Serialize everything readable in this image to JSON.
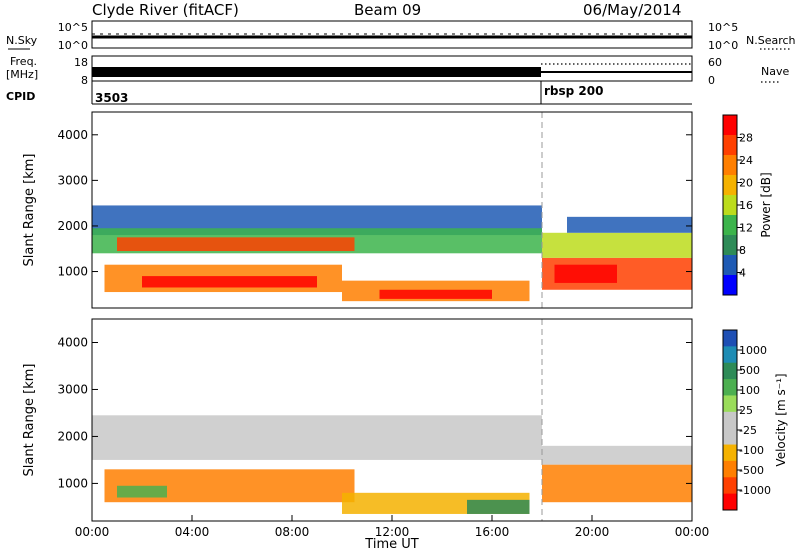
{
  "header": {
    "title": "Clyde River (fitACF)",
    "beam": "Beam 09",
    "date": "06/May/2014"
  },
  "strip_panels": {
    "nsky": {
      "label": "N.Sky",
      "left_ticks": [
        "10^5",
        "10^0"
      ],
      "right_label": "N.Search",
      "right_ticks": [
        "10^5",
        "10^0"
      ]
    },
    "freq": {
      "label_top": "Freq.",
      "label_units": "[MHz]",
      "left_ticks": [
        "18",
        "8"
      ],
      "right_label": "Nave",
      "right_ticks": [
        "60",
        "0"
      ]
    },
    "cpid": {
      "label": "CPID",
      "segments": [
        {
          "label": "3503",
          "start_hour": 0
        },
        {
          "label": "rbsp 200",
          "start_hour": 18.0
        }
      ]
    }
  },
  "chart_data": [
    {
      "type": "heatmap",
      "name": "power",
      "ylabel": "Slant Range [km]",
      "xlabel": "",
      "ylim": [
        200,
        4500
      ],
      "xlim_hours": [
        0,
        24
      ],
      "yticks": [
        1000,
        2000,
        3000,
        4000
      ],
      "colorbar": {
        "label": "Power [dB]",
        "range": [
          0,
          32
        ],
        "ticks": [
          "4",
          "8",
          "12",
          "16",
          "20",
          "24",
          "28"
        ],
        "colors": [
          "#0000ff",
          "#1e5ab4",
          "#2e8b57",
          "#3cb44b",
          "#bcdc1c",
          "#f5b200",
          "#ff7f00",
          "#ff4000",
          "#ff0000"
        ]
      },
      "bands": [
        {
          "start": 0.0,
          "end": 18.0,
          "low": 1800,
          "high": 2450,
          "color": "#1e5ab4"
        },
        {
          "start": 0.0,
          "end": 18.0,
          "low": 1400,
          "high": 1950,
          "color": "#3cb44b"
        },
        {
          "start": 1.0,
          "end": 10.5,
          "low": 1450,
          "high": 1750,
          "color": "#ff4000"
        },
        {
          "start": 0.5,
          "end": 10.0,
          "low": 550,
          "high": 1150,
          "color": "#ff7f00"
        },
        {
          "start": 2.0,
          "end": 9.0,
          "low": 650,
          "high": 900,
          "color": "#ff0000"
        },
        {
          "start": 10.0,
          "end": 17.5,
          "low": 350,
          "high": 800,
          "color": "#ff7f00"
        },
        {
          "start": 11.5,
          "end": 16.0,
          "low": 400,
          "high": 600,
          "color": "#ff0000"
        },
        {
          "start": 18.0,
          "end": 24.0,
          "low": 600,
          "high": 1300,
          "color": "#ff4000"
        },
        {
          "start": 18.5,
          "end": 21.0,
          "low": 750,
          "high": 1150,
          "color": "#ff0000"
        },
        {
          "start": 18.0,
          "end": 24.0,
          "low": 1300,
          "high": 1850,
          "color": "#bcdc1c"
        },
        {
          "start": 19.0,
          "end": 24.0,
          "low": 1850,
          "high": 2200,
          "color": "#1e5ab4"
        }
      ]
    },
    {
      "type": "heatmap",
      "name": "velocity",
      "ylabel": "Slant Range [km]",
      "xlabel": "Time UT",
      "ylim": [
        200,
        4500
      ],
      "xlim_hours": [
        0,
        24
      ],
      "yticks": [
        1000,
        2000,
        3000,
        4000
      ],
      "xticks": [
        "00:00",
        "04:00",
        "08:00",
        "12:00",
        "16:00",
        "20:00",
        "00:00"
      ],
      "colorbar": {
        "label": "Velocity [m s⁻¹]",
        "ticks": [
          "1000",
          "500",
          "100",
          "25",
          "-25",
          "-100",
          "-500",
          "-1000"
        ],
        "colors": [
          "#1e4fb4",
          "#1e8cb4",
          "#2e8b57",
          "#4caf50",
          "#9adc5a",
          "#c8c8c8",
          "#c8c8c8",
          "#f5b200",
          "#ff7f00",
          "#ff4000",
          "#ff0000"
        ]
      },
      "bands": [
        {
          "start": 0.0,
          "end": 18.0,
          "low": 1500,
          "high": 2450,
          "color": "#c8c8c8"
        },
        {
          "start": 0.5,
          "end": 10.5,
          "low": 600,
          "high": 1300,
          "color": "#ff7f00"
        },
        {
          "start": 1.0,
          "end": 3.0,
          "low": 700,
          "high": 950,
          "color": "#4caf50"
        },
        {
          "start": 10.0,
          "end": 17.5,
          "low": 350,
          "high": 800,
          "color": "#f5b200"
        },
        {
          "start": 15.0,
          "end": 17.5,
          "low": 350,
          "high": 650,
          "color": "#2e8b57"
        },
        {
          "start": 18.0,
          "end": 24.0,
          "low": 600,
          "high": 1400,
          "color": "#ff7f00"
        },
        {
          "start": 18.0,
          "end": 24.0,
          "low": 1400,
          "high": 1800,
          "color": "#c8c8c8"
        }
      ]
    }
  ]
}
